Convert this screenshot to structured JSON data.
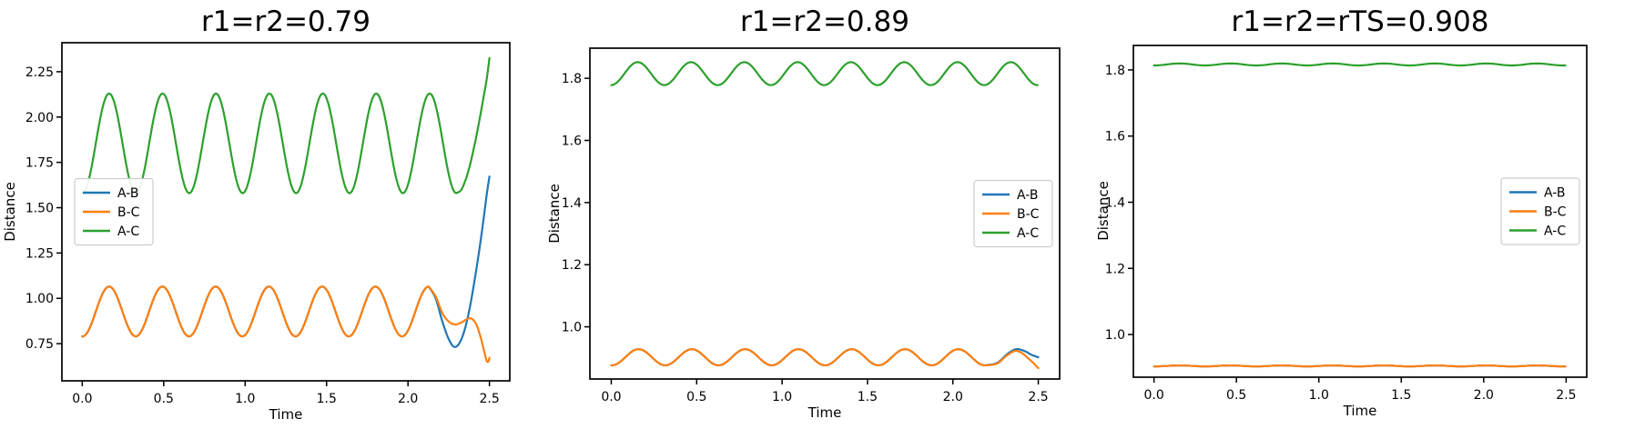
{
  "figure": {
    "background": "#ffffff",
    "spine_color": "#000000",
    "text_color": "#000000",
    "legend_border_color": "#cccccc"
  },
  "chart_data": [
    {
      "type": "line",
      "title": "r1=r2=0.79",
      "xlabel": "Time",
      "ylabel": "Distance",
      "xlim": [
        -0.125,
        2.625
      ],
      "ylim": [
        0.545,
        2.41
      ],
      "xticks": [
        0.0,
        0.5,
        1.0,
        1.5,
        2.0,
        2.5
      ],
      "xtick_labels": [
        "0.0",
        "0.5",
        "1.0",
        "1.5",
        "2.0",
        "2.5"
      ],
      "yticks": [
        0.75,
        1.0,
        1.25,
        1.5,
        1.75,
        2.0,
        2.25
      ],
      "ytick_labels": [
        "0.75",
        "1.00",
        "1.25",
        "1.50",
        "1.75",
        "2.00",
        "2.25"
      ],
      "grid": false,
      "legend": {
        "position": "center left",
        "entries": [
          "A-B",
          "B-C",
          "A-C"
        ]
      },
      "series": [
        {
          "name": "A-B",
          "color": "#1f77b4",
          "segments": [
            {
              "type": "osc",
              "t0": 0,
              "t1": 2.127,
              "mean": 0.9275,
              "amp": 0.1375,
              "period": 0.327,
              "t_peak": 0.165
            },
            {
              "type": "points",
              "pts": [
                [
                  2.127,
                  1.065
                ],
                [
                  2.17,
                  1.0
                ],
                [
                  2.21,
                  0.875
                ],
                [
                  2.25,
                  0.775
                ],
                [
                  2.285,
                  0.732
                ],
                [
                  2.32,
                  0.76
                ],
                [
                  2.355,
                  0.85
                ],
                [
                  2.39,
                  1.0
                ],
                [
                  2.43,
                  1.22
                ],
                [
                  2.46,
                  1.41
                ],
                [
                  2.483,
                  1.57
                ],
                [
                  2.5,
                  1.672
                ]
              ]
            }
          ]
        },
        {
          "name": "B-C",
          "color": "#ff7f0e",
          "segments": [
            {
              "type": "osc",
              "t0": 0,
              "t1": 2.127,
              "mean": 0.9275,
              "amp": 0.1375,
              "period": 0.327,
              "t_peak": 0.165
            },
            {
              "type": "points",
              "pts": [
                [
                  2.127,
                  1.065
                ],
                [
                  2.17,
                  1.01
                ],
                [
                  2.21,
                  0.92
                ],
                [
                  2.25,
                  0.872
                ],
                [
                  2.29,
                  0.856
                ],
                [
                  2.33,
                  0.868
                ],
                [
                  2.362,
                  0.885
                ],
                [
                  2.39,
                  0.888
                ],
                [
                  2.42,
                  0.855
                ],
                [
                  2.445,
                  0.788
                ],
                [
                  2.465,
                  0.718
                ],
                [
                  2.482,
                  0.658
                ],
                [
                  2.493,
                  0.651
                ],
                [
                  2.5,
                  0.672
                ]
              ]
            }
          ]
        },
        {
          "name": "A-C",
          "color": "#2ca02c",
          "segments": [
            {
              "type": "osc",
              "t0": 0,
              "t1": 2.297,
              "mean": 1.855,
              "amp": 0.275,
              "period": 0.328,
              "t_peak": 0.165
            },
            {
              "type": "points",
              "pts": [
                [
                  2.297,
                  1.581
                ],
                [
                  2.33,
                  1.603
                ],
                [
                  2.37,
                  1.7
                ],
                [
                  2.41,
                  1.852
                ],
                [
                  2.44,
                  1.99
                ],
                [
                  2.468,
                  2.13
                ],
                [
                  2.485,
                  2.22
                ],
                [
                  2.5,
                  2.325
                ]
              ]
            }
          ]
        }
      ]
    },
    {
      "type": "line",
      "title": "r1=r2=0.89",
      "xlabel": "Time",
      "ylabel": "Distance",
      "xlim": [
        -0.125,
        2.625
      ],
      "ylim": [
        0.832,
        1.897
      ],
      "xticks": [
        0.0,
        0.5,
        1.0,
        1.5,
        2.0,
        2.5
      ],
      "xtick_labels": [
        "0.0",
        "0.5",
        "1.0",
        "1.5",
        "2.0",
        "2.5"
      ],
      "yticks": [
        1.0,
        1.2,
        1.4,
        1.6,
        1.8
      ],
      "ytick_labels": [
        "1.0",
        "1.2",
        "1.4",
        "1.6",
        "1.8"
      ],
      "grid": false,
      "legend": {
        "position": "center right",
        "entries": [
          "A-B",
          "B-C",
          "A-C"
        ]
      },
      "series": [
        {
          "name": "A-B",
          "color": "#1f77b4",
          "segments": [
            {
              "type": "osc",
              "t0": 0,
              "t1": 2.2,
              "mean": 0.902,
              "amp": 0.026,
              "period": 0.312,
              "t_peak": 0.16
            },
            {
              "type": "points",
              "pts": [
                [
                  2.2,
                  0.877
                ],
                [
                  2.26,
                  0.884
                ],
                [
                  2.32,
                  0.913
                ],
                [
                  2.37,
                  0.928
                ],
                [
                  2.42,
                  0.922
                ],
                [
                  2.46,
                  0.91
                ],
                [
                  2.5,
                  0.902
                ]
              ]
            }
          ]
        },
        {
          "name": "B-C",
          "color": "#ff7f0e",
          "segments": [
            {
              "type": "osc",
              "t0": 0,
              "t1": 2.2,
              "mean": 0.902,
              "amp": 0.026,
              "period": 0.312,
              "t_peak": 0.16
            },
            {
              "type": "points",
              "pts": [
                [
                  2.2,
                  0.876
                ],
                [
                  2.26,
                  0.882
                ],
                [
                  2.31,
                  0.905
                ],
                [
                  2.36,
                  0.922
                ],
                [
                  2.4,
                  0.917
                ],
                [
                  2.44,
                  0.899
                ],
                [
                  2.47,
                  0.884
                ],
                [
                  2.5,
                  0.867
                ]
              ]
            }
          ]
        },
        {
          "name": "A-C",
          "color": "#2ca02c",
          "segments": [
            {
              "type": "osc",
              "t0": 0,
              "t1": 2.5,
              "mean": 1.815,
              "amp": 0.037,
              "period": 0.312,
              "t_peak": 0.155
            }
          ]
        }
      ]
    },
    {
      "type": "line",
      "title": "r1=r2=rTS=0.908",
      "xlabel": "Time",
      "ylabel": "Distance",
      "xlim": [
        -0.125,
        2.625
      ],
      "ylim": [
        0.871,
        1.874
      ],
      "xticks": [
        0.0,
        0.5,
        1.0,
        1.5,
        2.0,
        2.5
      ],
      "xtick_labels": [
        "0.0",
        "0.5",
        "1.0",
        "1.5",
        "2.0",
        "2.5"
      ],
      "yticks": [
        1.0,
        1.2,
        1.4,
        1.6,
        1.8
      ],
      "ytick_labels": [
        "1.0",
        "1.2",
        "1.4",
        "1.6",
        "1.8"
      ],
      "grid": false,
      "legend": {
        "position": "center right",
        "entries": [
          "A-B",
          "B-C",
          "A-C"
        ]
      },
      "series": [
        {
          "name": "A-B",
          "color": "#1f77b4",
          "segments": [
            {
              "type": "osc",
              "t0": 0,
              "t1": 2.5,
              "mean": 0.905,
              "amp": 0.0015,
              "period": 0.31,
              "t_peak": 0.155
            }
          ]
        },
        {
          "name": "B-C",
          "color": "#ff7f0e",
          "segments": [
            {
              "type": "osc",
              "t0": 0,
              "t1": 2.5,
              "mean": 0.905,
              "amp": 0.0015,
              "period": 0.31,
              "t_peak": 0.155
            }
          ]
        },
        {
          "name": "A-C",
          "color": "#2ca02c",
          "segments": [
            {
              "type": "osc",
              "t0": 0,
              "t1": 2.5,
              "mean": 1.8165,
              "amp": 0.003,
              "period": 0.31,
              "t_peak": 0.155
            }
          ]
        }
      ]
    }
  ]
}
